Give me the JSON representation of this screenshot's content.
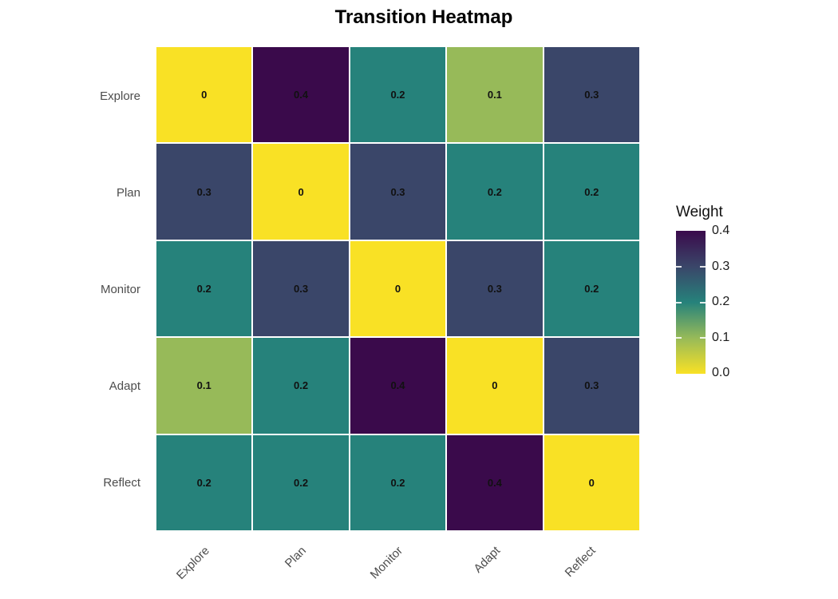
{
  "title": "Transition Heatmap",
  "chart_data": {
    "type": "heatmap",
    "title": "Transition Heatmap",
    "rows": [
      "Explore",
      "Plan",
      "Monitor",
      "Adapt",
      "Reflect"
    ],
    "cols": [
      "Explore",
      "Plan",
      "Monitor",
      "Adapt",
      "Reflect"
    ],
    "matrix": [
      [
        0,
        0.4,
        0.2,
        0.1,
        0.3
      ],
      [
        0.3,
        0,
        0.3,
        0.2,
        0.2
      ],
      [
        0.2,
        0.3,
        0,
        0.3,
        0.2
      ],
      [
        0.1,
        0.2,
        0.4,
        0,
        0.3
      ],
      [
        0.2,
        0.2,
        0.2,
        0.4,
        0
      ]
    ],
    "value_range": [
      0.0,
      0.4
    ],
    "grid": "off",
    "legend": {
      "title": "Weight",
      "position": "right",
      "ticks": [
        "0.4",
        "0.3",
        "0.2",
        "0.1",
        "0.0"
      ]
    },
    "color_scale": {
      "0": "#F9E125",
      "0.1": "#97BA59",
      "0.2": "#26827B",
      "0.3": "#3A4669",
      "0.4": "#3A0A4B"
    },
    "colorbar_gradient_top_to_bottom": [
      "#3A0A4B",
      "#3A4669",
      "#26827B",
      "#97BA59",
      "#F9E125"
    ]
  }
}
